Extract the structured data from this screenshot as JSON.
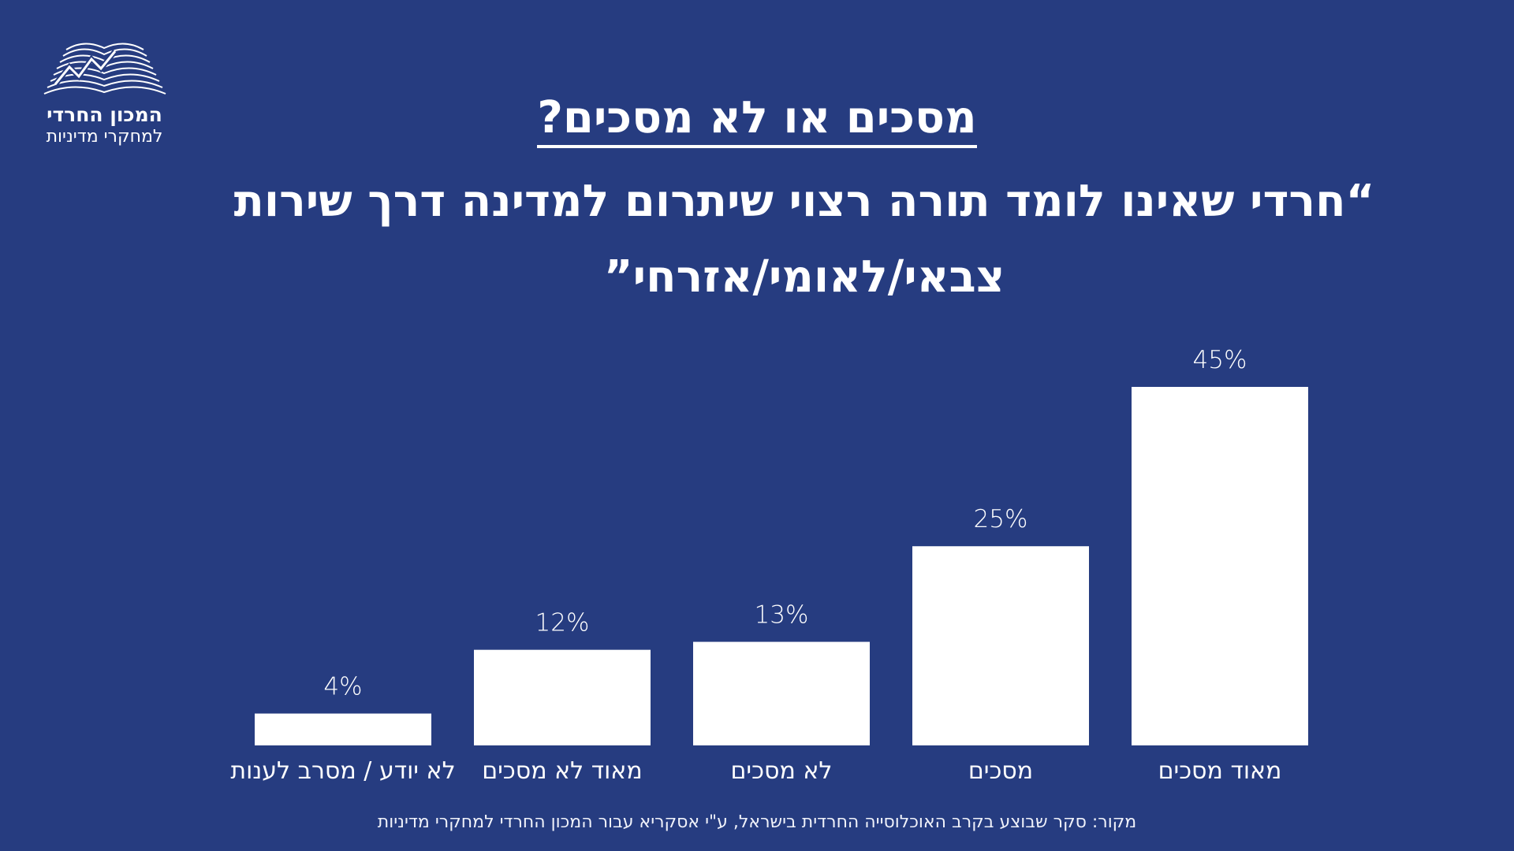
{
  "logo": {
    "name": "המכון החרדי",
    "sub": "למחקרי מדיניות"
  },
  "title": "מסכים או לא מסכים?",
  "subtitle": "“חרדי שאינו לומד תורה רצוי שיתרום למדינה דרך שירות צבאי/לאומי/אזרחי”",
  "source": "מקור: סקר שבוצע בקרב האוכלוסייה החרדית בישראל,  ע\"י אסקריא עבור המכון החרדי למחקרי מדיניות",
  "colors": {
    "background": "#263c80",
    "bar": "#ffffff",
    "text": "#ffffff"
  },
  "chart_data": {
    "type": "bar",
    "categories": [
      "לא יודע / מסרב לענות",
      "מאוד לא מסכים",
      "לא מסכים",
      "מסכים",
      "מאוד מסכים"
    ],
    "values": [
      4,
      12,
      13,
      25,
      45
    ],
    "value_labels": [
      "4%",
      "12%",
      "13%",
      "25%",
      "45%"
    ],
    "ylim": [
      0,
      45
    ],
    "grid": false,
    "legend": "none"
  }
}
